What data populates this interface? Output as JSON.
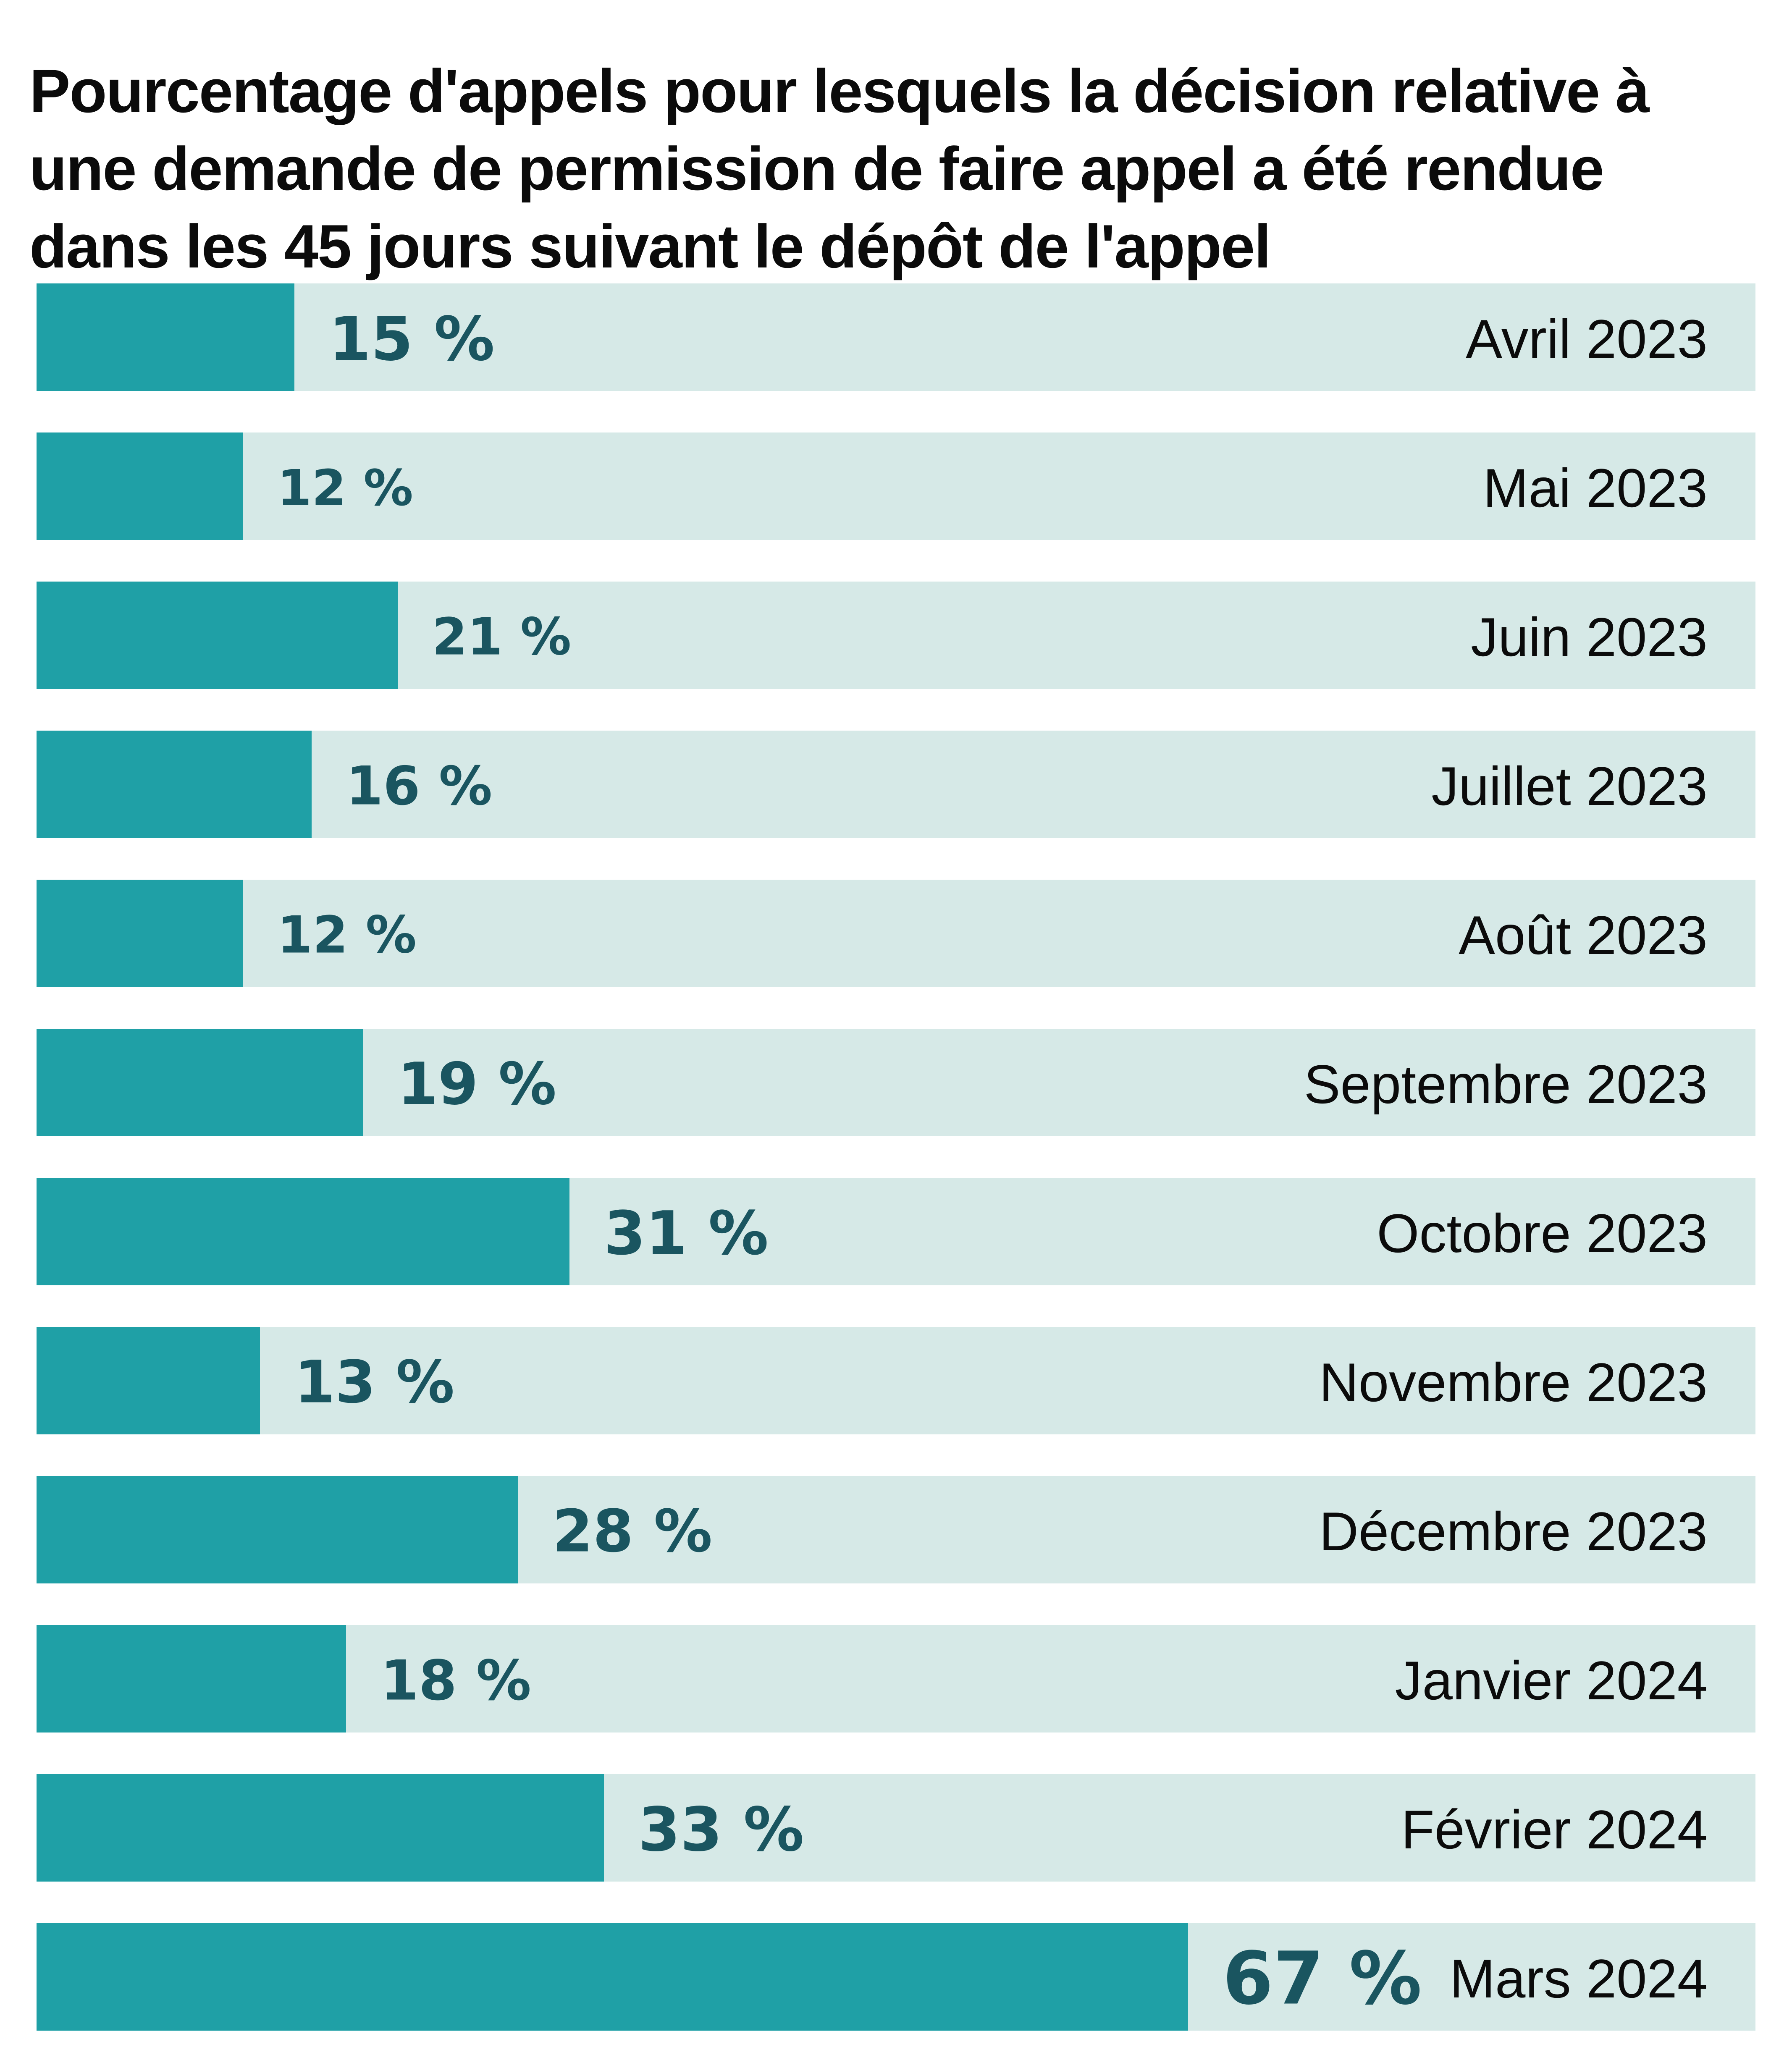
{
  "title": {
    "full": "Pourcentage d'appels pour lesquels la décision relative à une demande de permission de faire appel a été rendue dans les 45 jours suivant le dépôt de l'appel",
    "lines": [
      "Pourcentage d'appels pour lesquels la décision relative à",
      "une demande de permission de faire appel a été rendue",
      "dans les 45 jours suivant le dépôt de l'appel"
    ]
  },
  "colors": {
    "background": "#ffffff",
    "bar_fill": "#1fa0a6",
    "bar_track": "#d6e9e7",
    "value_text": "#1a5560",
    "label_text": "#0b0b0b"
  },
  "chart_data": {
    "type": "bar",
    "orientation": "horizontal",
    "title": "Pourcentage d'appels pour lesquels la décision relative à une demande de permission de faire appel a été rendue dans les 45 jours suivant le dépôt de l'appel",
    "unit": "%",
    "xlim": [
      0,
      100
    ],
    "grid": false,
    "legend": false,
    "categories": [
      "Avril 2023",
      "Mai 2023",
      "Juin 2023",
      "Juillet 2023",
      "Août 2023",
      "Septembre 2023",
      "Octobre 2023",
      "Novembre 2023",
      "Décembre 2023",
      "Janvier 2024",
      "Février 2024",
      "Mars 2024"
    ],
    "values": [
      15,
      12,
      21,
      16,
      12,
      19,
      31,
      13,
      28,
      18,
      33,
      67
    ],
    "value_labels": [
      "15 %",
      "12 %",
      "21 %",
      "16 %",
      "12 %",
      "19 %",
      "31 %",
      "13 %",
      "28 %",
      "18 %",
      "33 %",
      "67 %"
    ]
  },
  "rows": [
    {
      "category": "Avril 2023",
      "value": 15,
      "label": "15 %",
      "label_font_px": 144
    },
    {
      "category": "Mai 2023",
      "value": 12,
      "label": "12 %",
      "label_font_px": 118
    },
    {
      "category": "Juin 2023",
      "value": 21,
      "label": "21 %",
      "label_font_px": 121
    },
    {
      "category": "Juillet 2023",
      "value": 16,
      "label": "16 %",
      "label_font_px": 127
    },
    {
      "category": "Août 2023",
      "value": 12,
      "label": "12 %",
      "label_font_px": 121
    },
    {
      "category": "Septembre 2023",
      "value": 19,
      "label": "19 %",
      "label_font_px": 138
    },
    {
      "category": "Octobre 2023",
      "value": 31,
      "label": "31 %",
      "label_font_px": 143
    },
    {
      "category": "Novembre 2023",
      "value": 13,
      "label": "13 %",
      "label_font_px": 139
    },
    {
      "category": "Décembre 2023",
      "value": 28,
      "label": "28 %",
      "label_font_px": 139
    },
    {
      "category": "Janvier 2024",
      "value": 18,
      "label": "18 %",
      "label_font_px": 131
    },
    {
      "category": "Février 2024",
      "value": 33,
      "label": "33 %",
      "label_font_px": 144
    },
    {
      "category": "Mars 2024",
      "value": 67,
      "label": "67 %",
      "label_font_px": 173
    }
  ]
}
